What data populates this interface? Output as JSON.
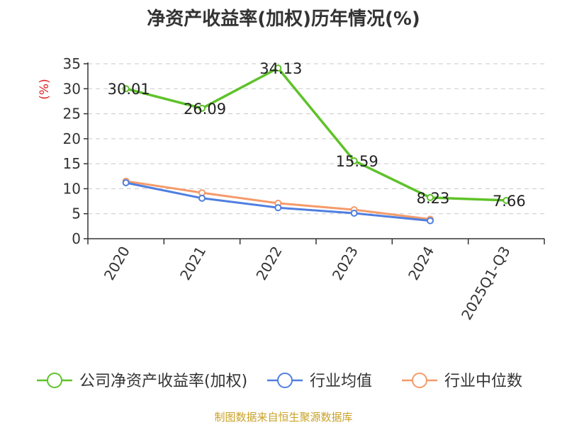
{
  "chart_data": {
    "type": "line",
    "title": "净资产收益率(加权)历年情况(%)",
    "ylabel": "(%)",
    "categories": [
      "2020",
      "2021",
      "2022",
      "2023",
      "2024",
      "2025Q1-Q3"
    ],
    "ylim": [
      0,
      35
    ],
    "yticks": [
      0,
      5,
      10,
      15,
      20,
      25,
      30,
      35
    ],
    "grid": true,
    "legend_position": "bottom",
    "series": [
      {
        "name": "公司净资产收益率(加权)",
        "color": "#5ec229",
        "values": [
          30.01,
          26.09,
          34.13,
          15.59,
          8.23,
          7.66
        ],
        "labels": [
          "30.01",
          "26.09",
          "34.13",
          "15.59",
          "8.23",
          "7.66"
        ]
      },
      {
        "name": "行业均值",
        "color": "#4f7fe0",
        "values": [
          11.2,
          8.1,
          6.2,
          5.1,
          3.6,
          null
        ]
      },
      {
        "name": "行业中位数",
        "color": "#f59a6a",
        "values": [
          11.5,
          9.2,
          7.1,
          5.8,
          3.9,
          null
        ]
      }
    ]
  },
  "footer": {
    "source": "制图数据来自恒生聚源数据库"
  }
}
